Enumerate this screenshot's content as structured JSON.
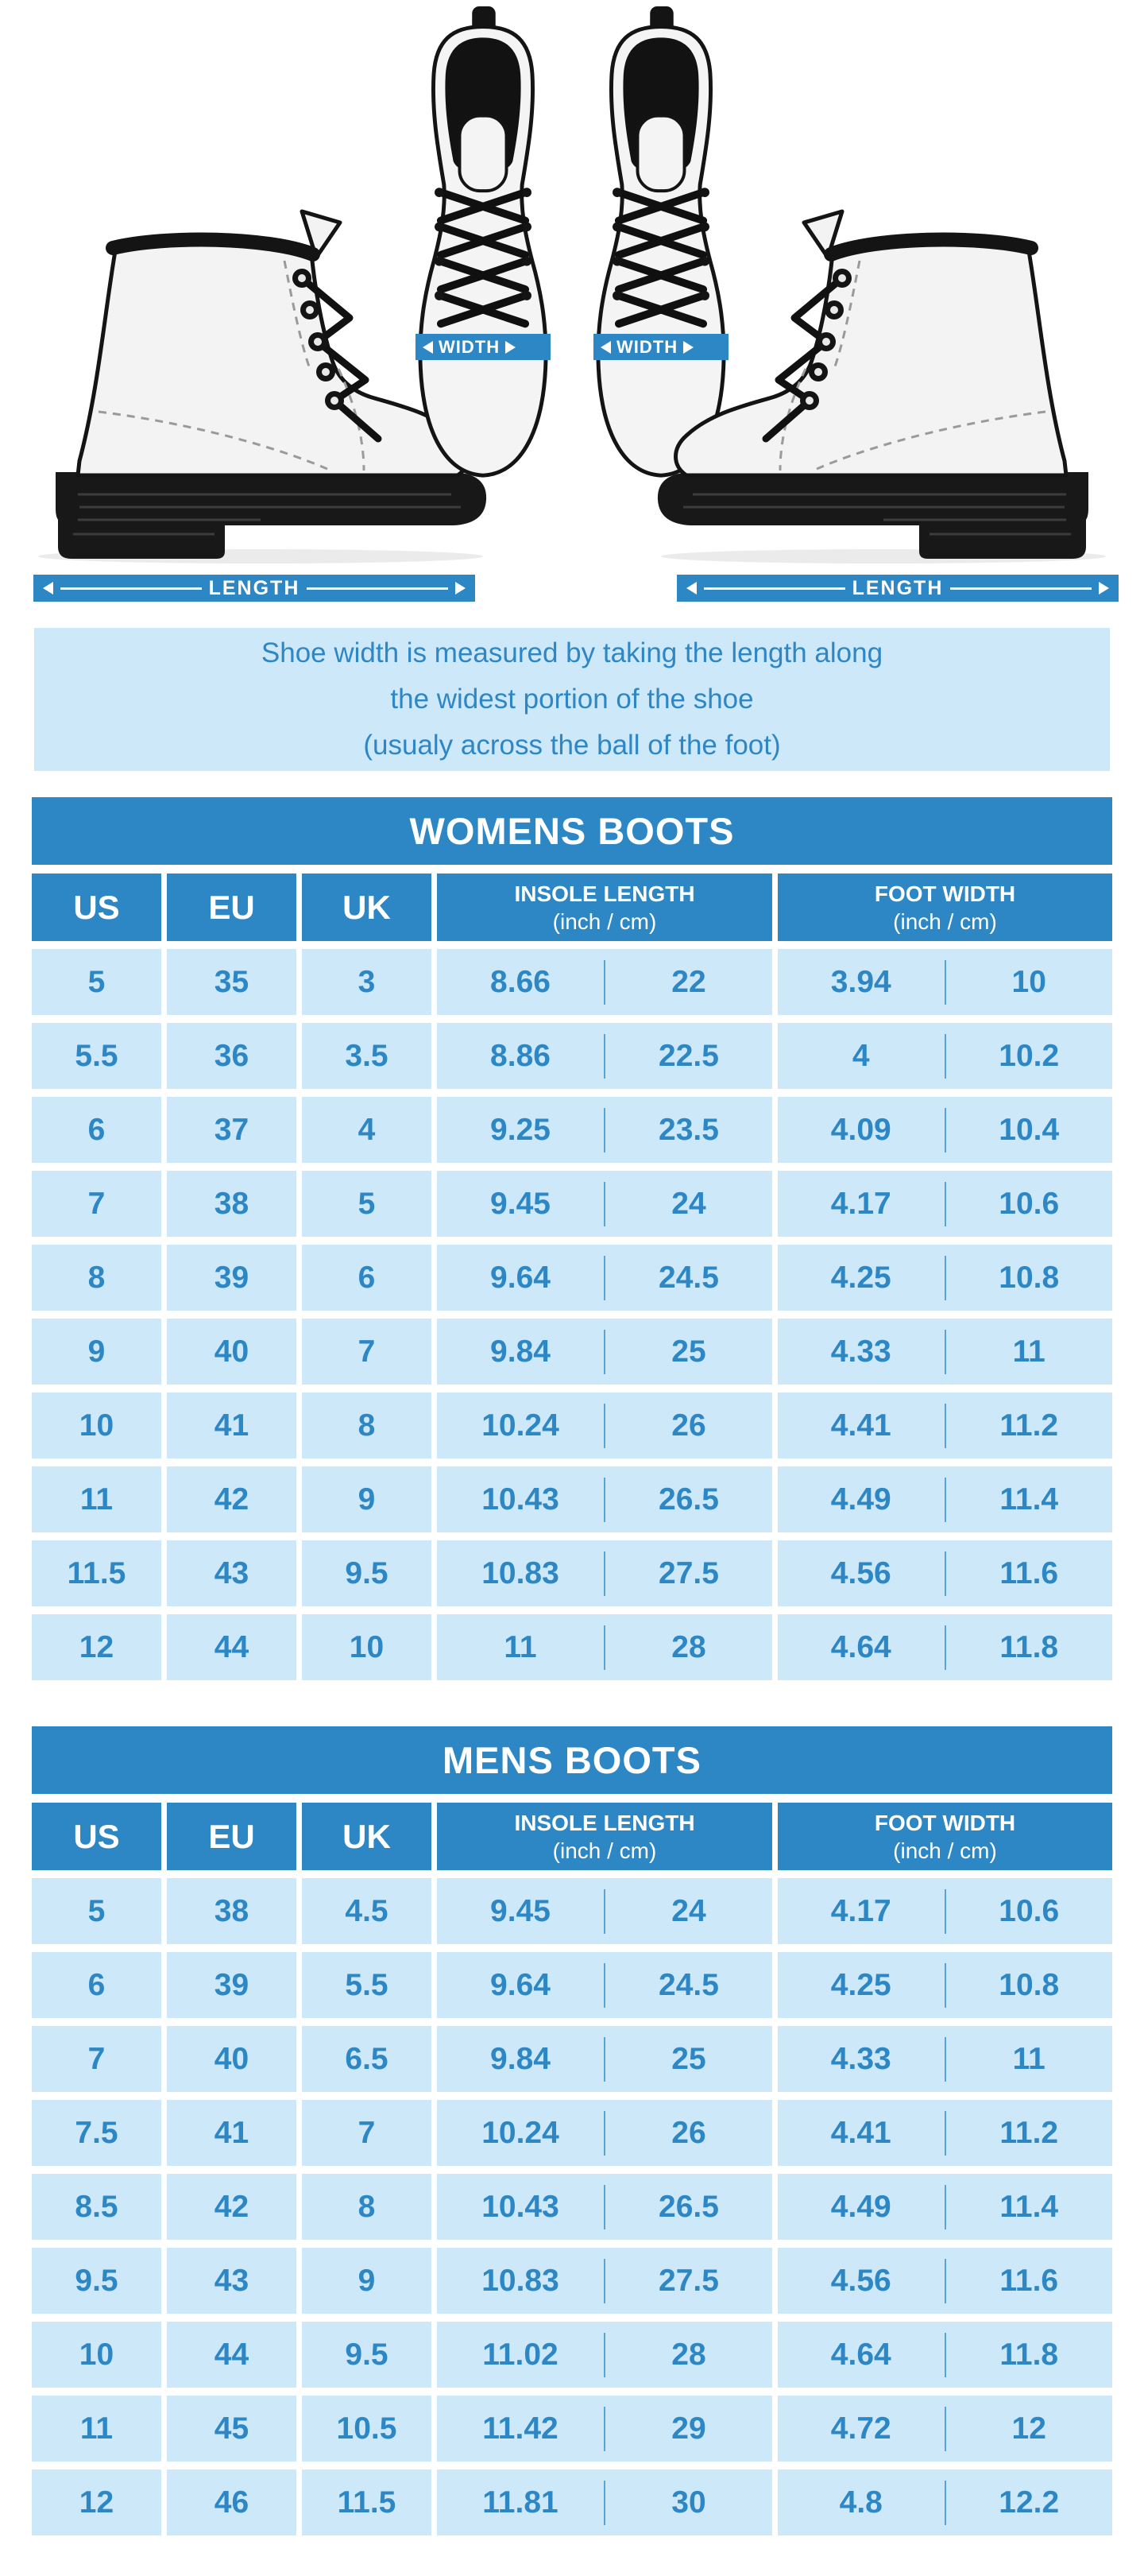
{
  "colors": {
    "primary_blue": "#2e87c5",
    "light_blue": "#cde9f9",
    "note_text_blue": "#2e86c4",
    "divider_blue": "#57a5d6"
  },
  "hero": {
    "width_band_left": "WIDTH",
    "width_band_right": "WIDTH",
    "length_bar_left": "LENGTH",
    "length_bar_right": "LENGTH"
  },
  "note": {
    "line1": "Shoe width is measured by taking the length along",
    "line2": "the widest portion of the shoe",
    "line3": "(usualy across the ball of the foot)"
  },
  "tables": [
    {
      "title": "WOMENS BOOTS",
      "columns": [
        "US",
        "EU",
        "UK"
      ],
      "insole_header": {
        "title": "INSOLE LENGTH",
        "sub": "(inch / cm)"
      },
      "foot_header": {
        "title": "FOOT WIDTH",
        "sub": "(inch / cm)"
      },
      "rows": [
        [
          "5",
          "35",
          "3",
          "8.66",
          "22",
          "3.94",
          "10"
        ],
        [
          "5.5",
          "36",
          "3.5",
          "8.86",
          "22.5",
          "4",
          "10.2"
        ],
        [
          "6",
          "37",
          "4",
          "9.25",
          "23.5",
          "4.09",
          "10.4"
        ],
        [
          "7",
          "38",
          "5",
          "9.45",
          "24",
          "4.17",
          "10.6"
        ],
        [
          "8",
          "39",
          "6",
          "9.64",
          "24.5",
          "4.25",
          "10.8"
        ],
        [
          "9",
          "40",
          "7",
          "9.84",
          "25",
          "4.33",
          "11"
        ],
        [
          "10",
          "41",
          "8",
          "10.24",
          "26",
          "4.41",
          "11.2"
        ],
        [
          "11",
          "42",
          "9",
          "10.43",
          "26.5",
          "4.49",
          "11.4"
        ],
        [
          "11.5",
          "43",
          "9.5",
          "10.83",
          "27.5",
          "4.56",
          "11.6"
        ],
        [
          "12",
          "44",
          "10",
          "11",
          "28",
          "4.64",
          "11.8"
        ]
      ]
    },
    {
      "title": "MENS BOOTS",
      "columns": [
        "US",
        "EU",
        "UK"
      ],
      "insole_header": {
        "title": "INSOLE LENGTH",
        "sub": "(inch / cm)"
      },
      "foot_header": {
        "title": "FOOT WIDTH",
        "sub": "(inch / cm)"
      },
      "rows": [
        [
          "5",
          "38",
          "4.5",
          "9.45",
          "24",
          "4.17",
          "10.6"
        ],
        [
          "6",
          "39",
          "5.5",
          "9.64",
          "24.5",
          "4.25",
          "10.8"
        ],
        [
          "7",
          "40",
          "6.5",
          "9.84",
          "25",
          "4.33",
          "11"
        ],
        [
          "7.5",
          "41",
          "7",
          "10.24",
          "26",
          "4.41",
          "11.2"
        ],
        [
          "8.5",
          "42",
          "8",
          "10.43",
          "26.5",
          "4.49",
          "11.4"
        ],
        [
          "9.5",
          "43",
          "9",
          "10.83",
          "27.5",
          "4.56",
          "11.6"
        ],
        [
          "10",
          "44",
          "9.5",
          "11.02",
          "28",
          "4.64",
          "11.8"
        ],
        [
          "11",
          "45",
          "10.5",
          "11.42",
          "29",
          "4.72",
          "12"
        ],
        [
          "12",
          "46",
          "11.5",
          "11.81",
          "30",
          "4.8",
          "12.2"
        ]
      ]
    }
  ]
}
